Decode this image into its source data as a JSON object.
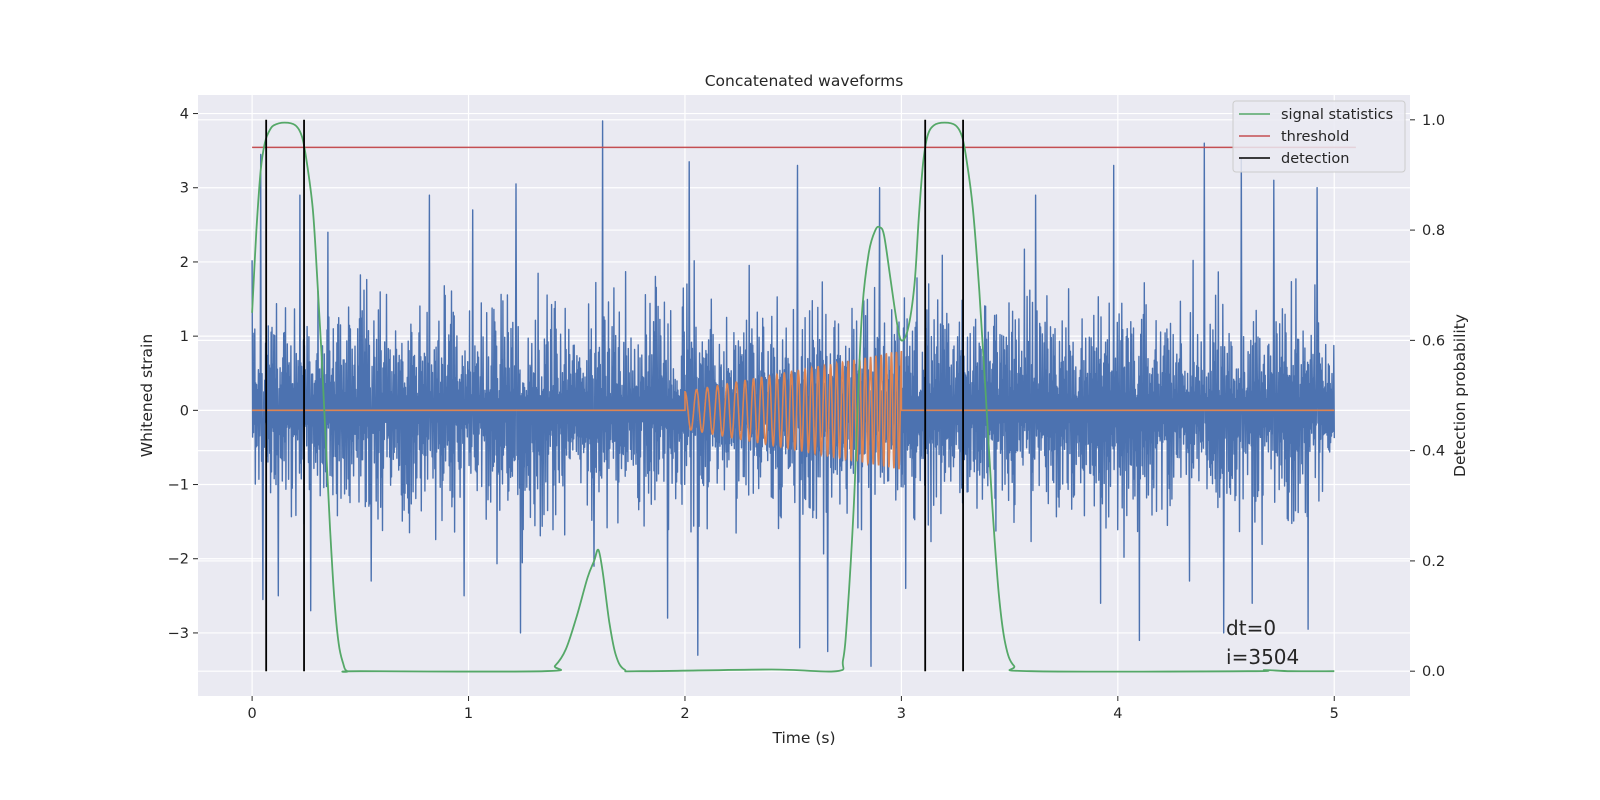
{
  "chart_data": {
    "type": "line",
    "title": "Concatenated waveforms",
    "xlabel": "Time (s)",
    "ylabel": "Whitened strain",
    "y2label": "Detection probability",
    "xlim": [
      -0.25,
      5.35
    ],
    "ylim": [
      -3.85,
      4.25
    ],
    "y2lim": [
      -0.045,
      1.045
    ],
    "x_ticks": [
      0,
      1,
      2,
      3,
      4,
      5
    ],
    "y_ticks": [
      -3,
      -2,
      -1,
      0,
      1,
      2,
      3,
      4
    ],
    "y2_ticks": [
      0.0,
      0.2,
      0.4,
      0.6,
      0.8,
      1.0
    ],
    "x_tick_labels": [
      "0",
      "1",
      "2",
      "3",
      "4",
      "5"
    ],
    "y_tick_labels": [
      "−3",
      "−2",
      "−1",
      "0",
      "1",
      "2",
      "3",
      "4"
    ],
    "y2_tick_labels": [
      "0.0",
      "0.2",
      "0.4",
      "0.6",
      "0.8",
      "1.0"
    ],
    "grid": true,
    "legend_position": "top-right",
    "background": "#eaeaf2",
    "series": [
      {
        "name": "",
        "kind": "whitened-strain-noise",
        "axis": "left",
        "color": "#4c72b0",
        "x_range": [
          0,
          5
        ],
        "typical_range": [
          -1.4,
          1.7
        ],
        "peaks_high": [
          [
            0.04,
            3.45
          ],
          [
            0.22,
            2.9
          ],
          [
            0.35,
            2.4
          ],
          [
            0.82,
            2.9
          ],
          [
            1.02,
            2.7
          ],
          [
            1.22,
            3.05
          ],
          [
            1.62,
            3.9
          ],
          [
            2.02,
            3.35
          ],
          [
            2.52,
            3.3
          ],
          [
            2.9,
            3.0
          ],
          [
            3.62,
            2.9
          ],
          [
            3.98,
            3.3
          ],
          [
            4.4,
            3.6
          ],
          [
            4.57,
            3.4
          ],
          [
            4.72,
            3.1
          ],
          [
            4.92,
            3.0
          ]
        ],
        "peaks_low": [
          [
            0.05,
            -2.55
          ],
          [
            0.12,
            -2.5
          ],
          [
            0.27,
            -2.7
          ],
          [
            0.55,
            -2.3
          ],
          [
            0.98,
            -2.5
          ],
          [
            1.24,
            -3.0
          ],
          [
            1.58,
            -2.1
          ],
          [
            1.92,
            -2.8
          ],
          [
            2.06,
            -3.3
          ],
          [
            2.53,
            -3.2
          ],
          [
            2.66,
            -3.25
          ],
          [
            2.86,
            -3.45
          ],
          [
            3.02,
            -2.4
          ],
          [
            3.92,
            -2.6
          ],
          [
            4.1,
            -3.1
          ],
          [
            4.33,
            -2.3
          ],
          [
            4.49,
            -3.0
          ],
          [
            4.62,
            -2.6
          ],
          [
            4.88,
            -2.95
          ]
        ]
      },
      {
        "name": "",
        "kind": "injected-chirp",
        "axis": "left",
        "color": "#dd8452",
        "x_range": [
          0,
          5
        ],
        "chirp_start": 2.0,
        "chirp_end": 3.0,
        "amplitude_start": 0.25,
        "amplitude_end": 0.8
      },
      {
        "name": "signal statistics",
        "axis": "right",
        "color": "#55a868",
        "x": [
          0,
          0.02,
          0.04,
          0.06,
          0.08,
          0.1,
          0.15,
          0.2,
          0.23,
          0.25,
          0.28,
          0.3,
          0.32,
          0.34,
          0.36,
          0.38,
          0.4,
          0.42,
          0.44,
          0.5,
          1.35,
          1.4,
          1.45,
          1.5,
          1.55,
          1.58,
          1.6,
          1.62,
          1.65,
          1.68,
          1.72,
          1.8,
          2.4,
          2.7,
          2.73,
          2.75,
          2.78,
          2.8,
          2.82,
          2.85,
          2.88,
          2.9,
          2.92,
          2.95,
          2.98,
          3.0,
          3.03,
          3.06,
          3.08,
          3.1,
          3.12,
          3.15,
          3.2,
          3.25,
          3.28,
          3.3,
          3.33,
          3.36,
          3.39,
          3.42,
          3.45,
          3.48,
          3.52,
          3.6,
          4.6,
          4.68,
          4.8,
          5.0
        ],
        "y": [
          0.65,
          0.8,
          0.91,
          0.96,
          0.98,
          0.99,
          0.995,
          0.99,
          0.97,
          0.93,
          0.84,
          0.72,
          0.58,
          0.42,
          0.26,
          0.13,
          0.05,
          0.015,
          0.0,
          0.0,
          0.0,
          0.01,
          0.04,
          0.1,
          0.17,
          0.2,
          0.22,
          0.18,
          0.09,
          0.03,
          0.003,
          0.0,
          0.003,
          0.0,
          0.02,
          0.1,
          0.3,
          0.5,
          0.66,
          0.76,
          0.8,
          0.805,
          0.79,
          0.71,
          0.63,
          0.6,
          0.62,
          0.7,
          0.82,
          0.92,
          0.97,
          0.99,
          0.995,
          0.99,
          0.97,
          0.93,
          0.84,
          0.69,
          0.5,
          0.3,
          0.14,
          0.05,
          0.01,
          0.0,
          0.0,
          0.002,
          0.0,
          0.0
        ]
      },
      {
        "name": "threshold",
        "axis": "right",
        "color": "#c44e52",
        "x": [
          0,
          5.1
        ],
        "y": [
          0.95,
          0.95
        ]
      }
    ],
    "detections": {
      "name": "detection",
      "color": "#000000",
      "x": [
        0.065,
        0.24,
        3.11,
        3.285
      ],
      "y_range": [
        0.0,
        1.0
      ]
    },
    "annotation": {
      "lines": [
        "dt=0",
        "i=3504"
      ],
      "x": 4.5,
      "y": -3.0
    }
  }
}
